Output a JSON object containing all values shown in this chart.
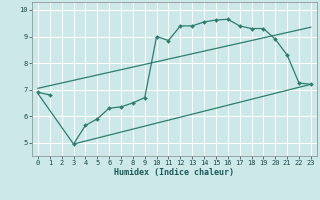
{
  "xlabel": "Humidex (Indice chaleur)",
  "bg_color": "#cce8e8",
  "grid_color": "#ffffff",
  "line_color": "#2e7d6e",
  "xlim": [
    -0.5,
    23.5
  ],
  "ylim": [
    4.5,
    10.3
  ],
  "xticks": [
    0,
    1,
    2,
    3,
    4,
    5,
    6,
    7,
    8,
    9,
    10,
    11,
    12,
    13,
    14,
    15,
    16,
    17,
    18,
    19,
    20,
    21,
    22,
    23
  ],
  "yticks": [
    5,
    6,
    7,
    8,
    9,
    10
  ],
  "line1_x": [
    0,
    1,
    3,
    4,
    5,
    6,
    7,
    8,
    9,
    10,
    11,
    12,
    13,
    14,
    15,
    16,
    17,
    18,
    19,
    20,
    21,
    22,
    23
  ],
  "line1_y": [
    6.9,
    6.8,
    4.95,
    5.65,
    5.9,
    6.3,
    6.35,
    6.5,
    6.7,
    9.0,
    8.85,
    9.4,
    9.4,
    9.55,
    9.62,
    9.65,
    9.4,
    9.3,
    9.3,
    8.9,
    8.3,
    7.25,
    7.2
  ],
  "line1_break_after": 1,
  "line2_x": [
    0,
    3,
    23
  ],
  "line2_y": [
    6.85,
    4.95,
    7.2
  ],
  "line3_x": [
    0,
    23
  ],
  "line3_y": [
    7.05,
    9.35
  ]
}
